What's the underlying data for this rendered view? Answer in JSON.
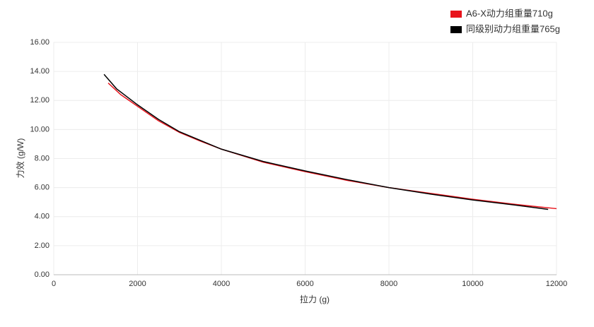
{
  "chart_data": {
    "type": "line",
    "x_label": "拉力 (g)",
    "y_label": "力效 (g/W)",
    "xlim": [
      0,
      12000
    ],
    "xticks": [
      0,
      2000,
      4000,
      6000,
      8000,
      10000,
      12000
    ],
    "ylim": [
      0,
      16
    ],
    "yticks": [
      {
        "value": 0,
        "label": "0.00"
      },
      {
        "value": 2,
        "label": "2.00"
      },
      {
        "value": 4,
        "label": "4.00"
      },
      {
        "value": 6,
        "label": "6.00"
      },
      {
        "value": 8,
        "label": "8.00"
      },
      {
        "value": 10,
        "label": "10.00"
      },
      {
        "value": 12,
        "label": "12.00"
      },
      {
        "value": 14,
        "label": "14.00"
      },
      {
        "value": 16,
        "label": "16.00"
      }
    ],
    "grid": true,
    "legend": "top-right",
    "series": [
      {
        "name": "A6-X动力组重量710g",
        "color": "#e8141c",
        "x": [
          1300,
          1600,
          2000,
          2500,
          3000,
          3500,
          4000,
          5000,
          6000,
          7000,
          8000,
          9000,
          10000,
          11000,
          12000
        ],
        "values": [
          13.2,
          12.4,
          11.6,
          10.6,
          9.8,
          9.2,
          8.65,
          7.75,
          7.1,
          6.5,
          6.0,
          5.6,
          5.2,
          4.85,
          4.55
        ]
      },
      {
        "name": "同级别动力组重量765g",
        "color": "#000000",
        "x": [
          1200,
          1500,
          2000,
          2500,
          3000,
          4000,
          5000,
          6000,
          7000,
          8000,
          9000,
          10000,
          11000,
          11800
        ],
        "values": [
          13.8,
          12.8,
          11.7,
          10.7,
          9.85,
          8.65,
          7.8,
          7.15,
          6.55,
          6.0,
          5.55,
          5.15,
          4.8,
          4.5
        ]
      }
    ]
  }
}
